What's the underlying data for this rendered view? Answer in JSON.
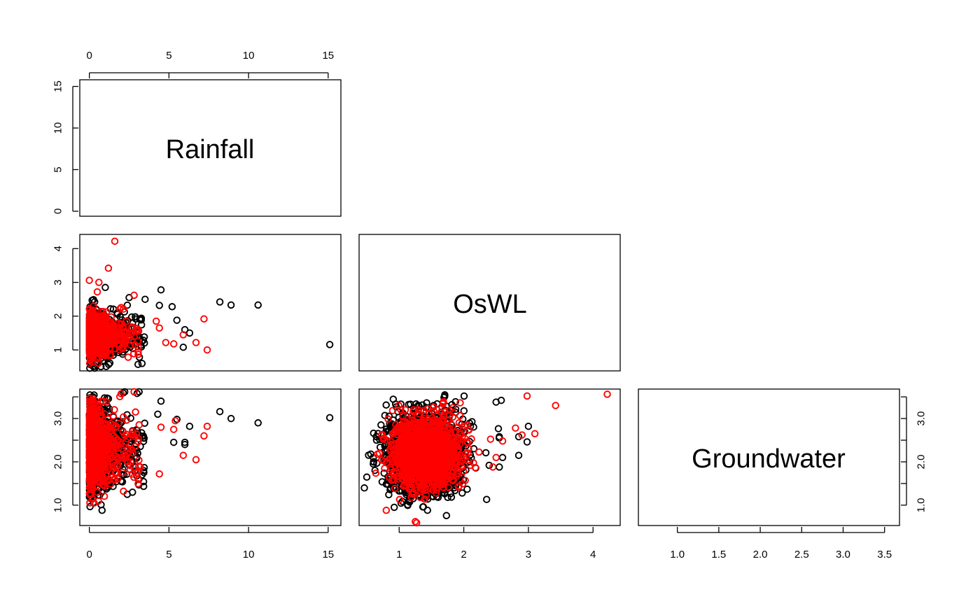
{
  "chart_data": {
    "type": "scatter",
    "layout": "lower-triangle scatterplot matrix",
    "variables": [
      "Rainfall",
      "OsWL",
      "Groundwater"
    ],
    "ranges": {
      "Rainfall": [
        -0.6,
        15.8
      ],
      "OsWL": [
        0.38,
        4.42
      ],
      "Groundwater": [
        0.53,
        3.68
      ]
    },
    "ticks": {
      "Rainfall": [
        0,
        5,
        10,
        15
      ],
      "OsWL": [
        1,
        2,
        3,
        4
      ],
      "Groundwater": [
        1.0,
        1.5,
        2.0,
        2.5,
        3.0,
        3.5
      ]
    },
    "tick_labels": {
      "Rainfall": [
        "0",
        "5",
        "10",
        "15"
      ],
      "OsWL": [
        "1",
        "2",
        "3",
        "4"
      ],
      "Groundwater": [
        "1.0",
        "1.5",
        "2.0",
        "2.5",
        "3.0",
        "3.5"
      ],
      "Groundwater_right": [
        "1.0",
        "2.0",
        "3.0"
      ],
      "OsWL_left": [
        "1",
        "2",
        "3",
        "4"
      ],
      "Rainfall_left": [
        "0",
        "5",
        "10",
        "15"
      ]
    },
    "series_colors": {
      "observed": "#000000",
      "simulated": "#ff0000"
    },
    "outliers": {
      "black": {
        "rainfall_oswl": [
          [
            15.1,
            1.16
          ],
          [
            10.6,
            2.33
          ],
          [
            8.9,
            2.33
          ],
          [
            8.2,
            2.42
          ],
          [
            6.3,
            1.5
          ],
          [
            6.0,
            1.6
          ],
          [
            5.9,
            1.08
          ],
          [
            5.2,
            2.28
          ],
          [
            4.5,
            2.78
          ],
          [
            4.4,
            2.32
          ],
          [
            5.5,
            1.88
          ],
          [
            3.5,
            2.5
          ],
          [
            2.5,
            2.55
          ],
          [
            1.0,
            2.85
          ]
        ],
        "rainfall_groundwater": [
          [
            15.1,
            3.02
          ],
          [
            10.6,
            2.9
          ],
          [
            8.9,
            3.0
          ],
          [
            8.2,
            3.16
          ],
          [
            6.3,
            2.82
          ],
          [
            6.0,
            2.45
          ],
          [
            6.0,
            2.4
          ],
          [
            5.5,
            2.98
          ],
          [
            5.3,
            2.45
          ],
          [
            4.5,
            3.4
          ],
          [
            4.3,
            3.1
          ],
          [
            3.0,
            3.58
          ],
          [
            2.0,
            1.55
          ],
          [
            0.8,
            0.88
          ]
        ],
        "oswl_groundwater": [
          [
            3.0,
            2.82
          ],
          [
            2.98,
            2.46
          ],
          [
            2.85,
            2.58
          ],
          [
            2.85,
            2.15
          ],
          [
            2.58,
            3.42
          ],
          [
            2.5,
            3.38
          ],
          [
            2.55,
            1.88
          ],
          [
            2.6,
            2.1
          ],
          [
            2.55,
            2.58
          ],
          [
            0.6,
            2.1
          ],
          [
            0.6,
            1.95
          ]
        ]
      },
      "red": {
        "rainfall_oswl": [
          [
            1.6,
            4.22
          ],
          [
            1.2,
            3.42
          ],
          [
            0.0,
            3.06
          ],
          [
            0.6,
            3.0
          ],
          [
            7.4,
            1.0
          ],
          [
            7.2,
            1.92
          ],
          [
            6.7,
            1.22
          ],
          [
            5.9,
            1.45
          ],
          [
            5.3,
            1.18
          ],
          [
            4.8,
            1.22
          ],
          [
            4.4,
            1.65
          ],
          [
            4.2,
            1.85
          ],
          [
            0.5,
            2.72
          ]
        ],
        "rainfall_groundwater": [
          [
            7.4,
            2.82
          ],
          [
            7.2,
            2.6
          ],
          [
            6.7,
            2.05
          ],
          [
            5.9,
            2.15
          ],
          [
            5.4,
            2.95
          ],
          [
            5.3,
            2.75
          ],
          [
            4.5,
            2.8
          ],
          [
            4.4,
            1.72
          ],
          [
            3.2,
            1.88
          ],
          [
            2.9,
            3.15
          ],
          [
            0.3,
            1.05
          ]
        ],
        "oswl_groundwater": [
          [
            4.22,
            3.56
          ],
          [
            3.42,
            3.3
          ],
          [
            3.1,
            2.65
          ],
          [
            2.98,
            3.52
          ],
          [
            2.9,
            2.62
          ],
          [
            2.8,
            2.78
          ],
          [
            2.6,
            2.48
          ],
          [
            2.5,
            2.1
          ],
          [
            2.45,
            1.88
          ],
          [
            0.8,
            0.88
          ],
          [
            1.25,
            0.62
          ],
          [
            1.65,
            1.5
          ]
        ]
      }
    },
    "density": {
      "black": {
        "rainfall_oswl": {
          "n": 1300,
          "center": [
            0.55,
            1.42
          ],
          "spread": [
            0.9,
            0.32
          ]
        },
        "rainfall_groundwater": {
          "n": 1300,
          "center": [
            0.55,
            2.32
          ],
          "spread": [
            0.9,
            0.45
          ]
        },
        "oswl_groundwater": {
          "n": 1400,
          "center": [
            1.4,
            2.18
          ],
          "spread": [
            0.3,
            0.46
          ]
        }
      },
      "red": {
        "rainfall_oswl": {
          "n": 1100,
          "center": [
            0.45,
            1.42
          ],
          "spread": [
            0.7,
            0.28
          ]
        },
        "rainfall_groundwater": {
          "n": 1100,
          "center": [
            0.45,
            2.32
          ],
          "spread": [
            0.7,
            0.42
          ]
        },
        "oswl_groundwater": {
          "n": 1300,
          "center": [
            1.42,
            2.2
          ],
          "spread": [
            0.26,
            0.4
          ]
        }
      }
    }
  }
}
